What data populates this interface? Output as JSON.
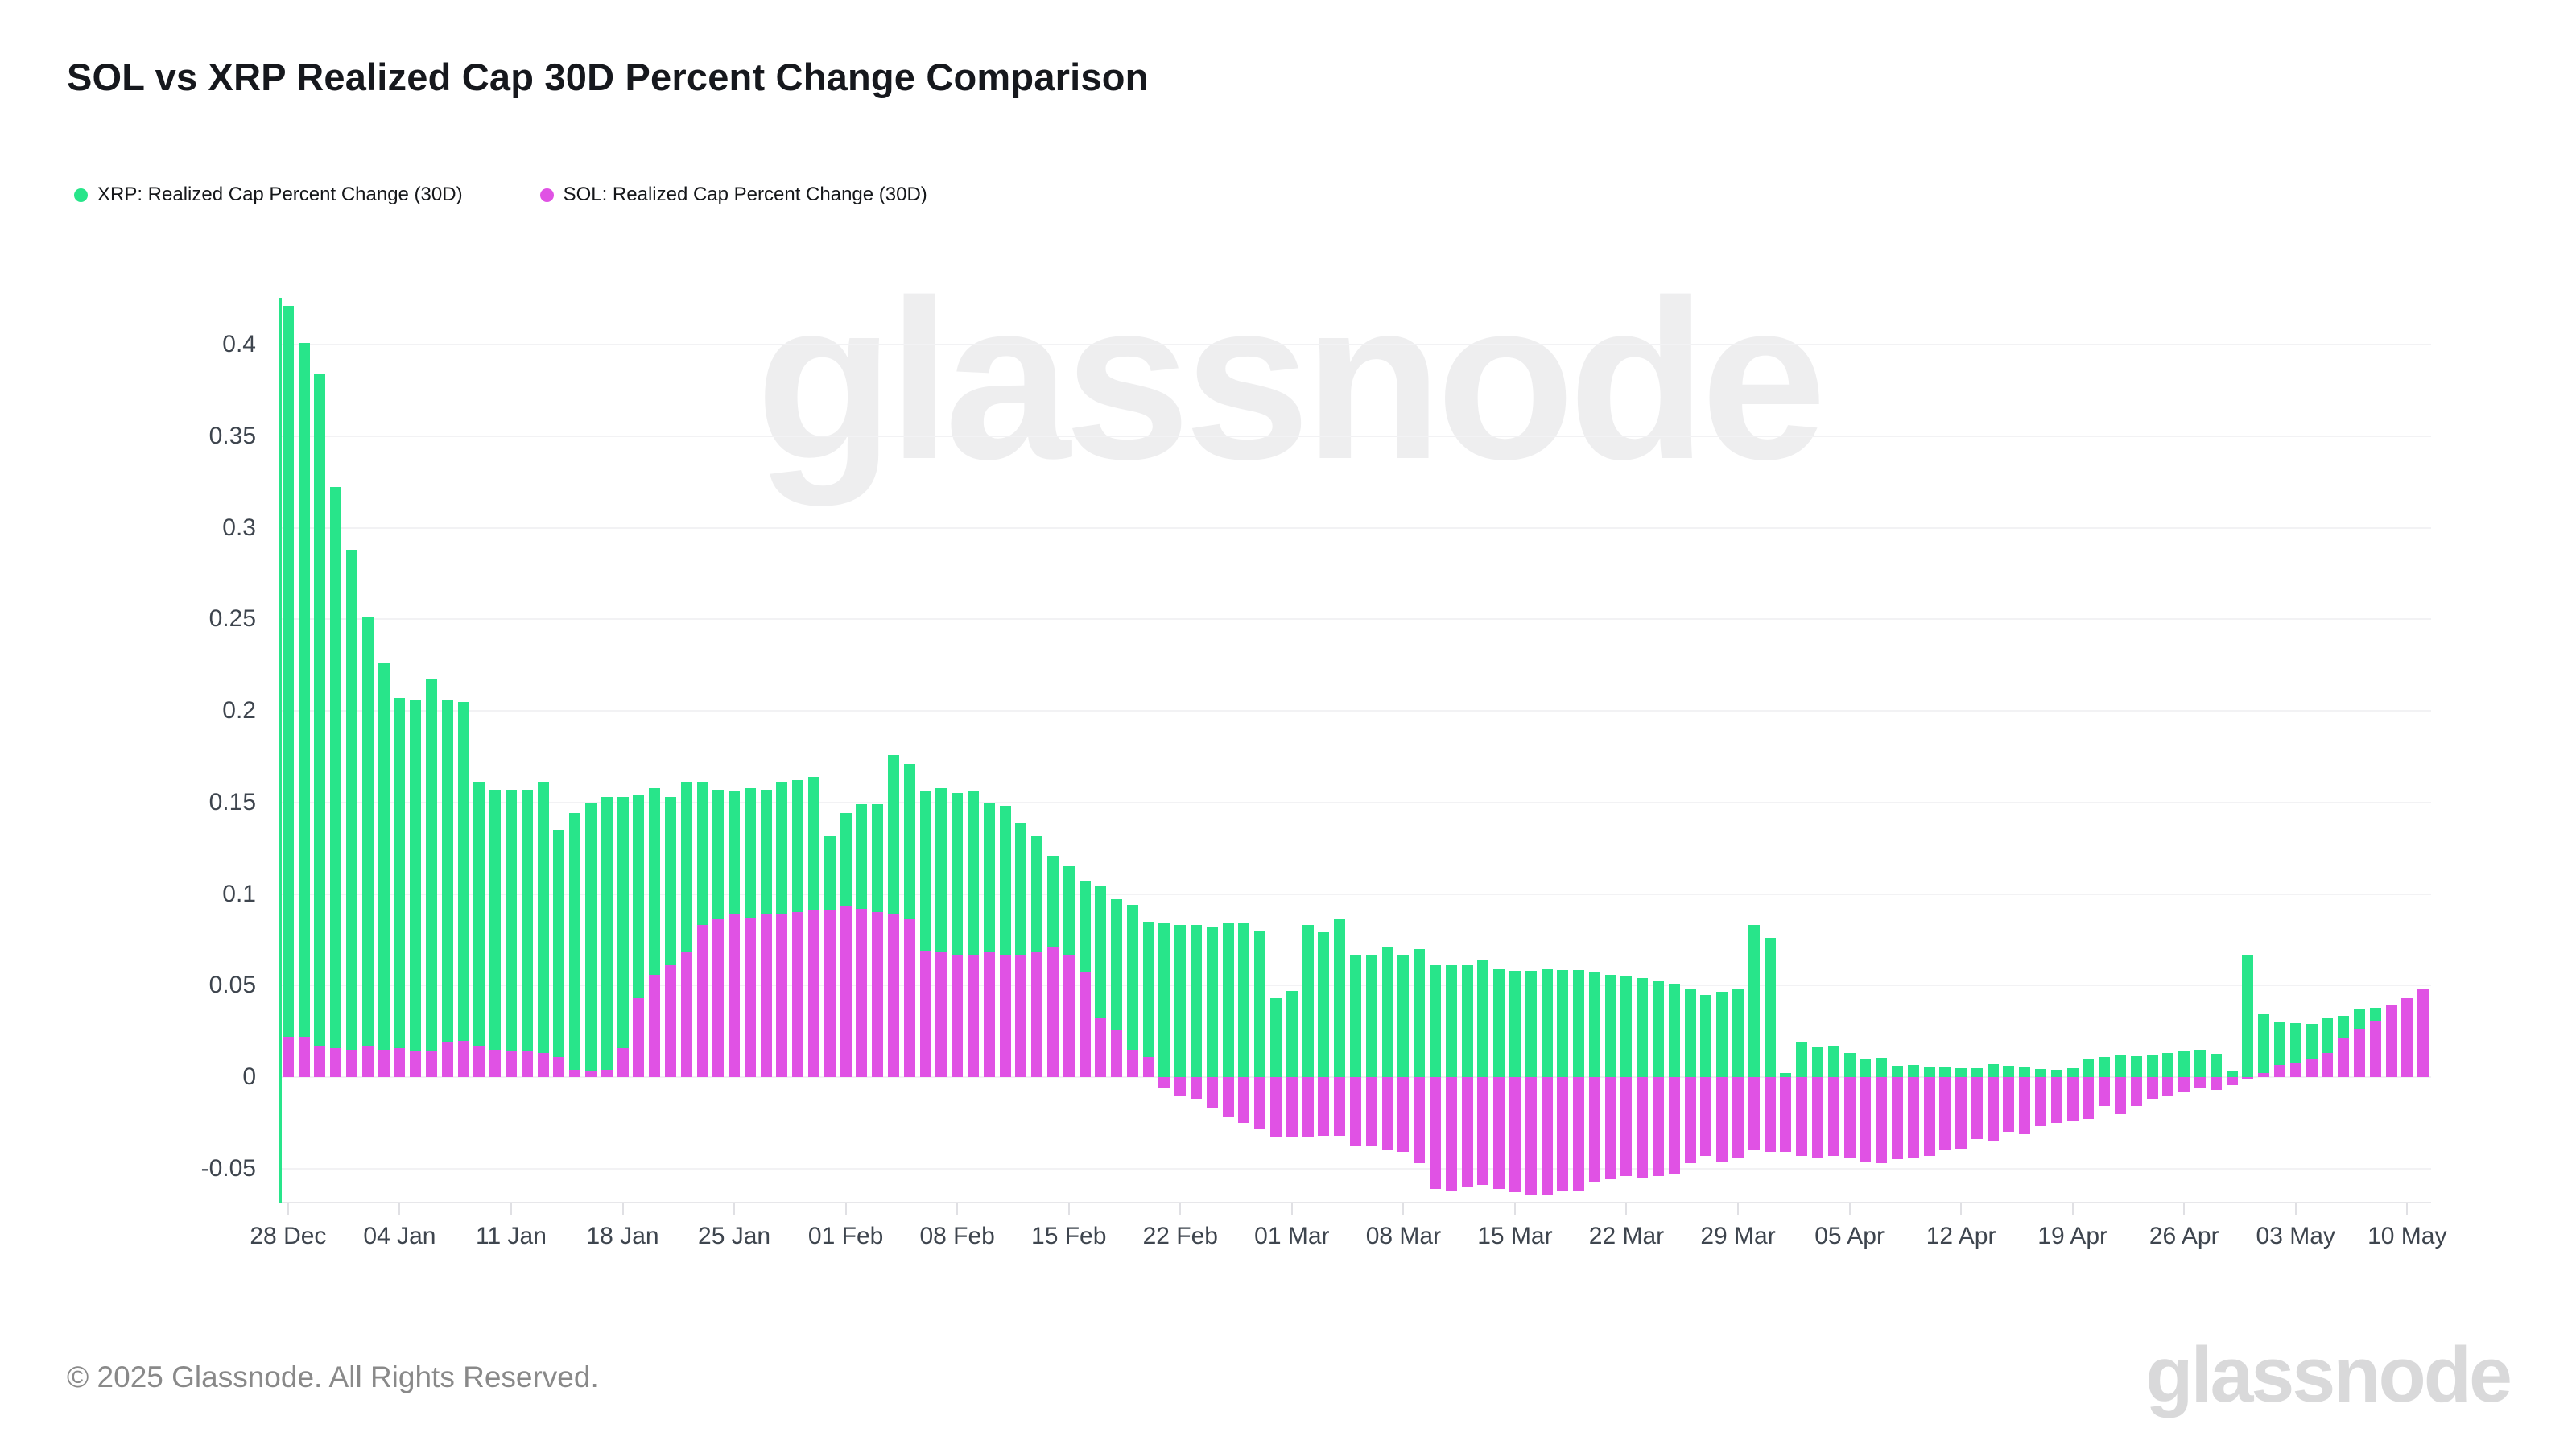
{
  "title": "SOL vs XRP Realized Cap 30D Percent Change Comparison",
  "legend": [
    {
      "label": "XRP: Realized Cap Percent Change (30D)",
      "color": "#28e58a"
    },
    {
      "label": "SOL: Realized Cap Percent Change (30D)",
      "color": "#e052e4"
    }
  ],
  "watermark_text": "glassnode",
  "footer": {
    "copyright": "© 2025 Glassnode. All Rights Reserved.",
    "logo_text": "glassnode"
  },
  "chart_data": {
    "type": "bar",
    "title": "SOL vs XRP Realized Cap 30D Percent Change Comparison",
    "xlabel": "",
    "ylabel": "",
    "ylim": [
      -0.069,
      0.4255
    ],
    "grid": true,
    "legend_position": "top-left",
    "y_ticks": {
      "values": [
        0.4,
        0.35,
        0.3,
        0.25,
        0.2,
        0.15,
        0.1,
        0.05,
        0,
        -0.05
      ],
      "labels": [
        "0.4",
        "0.35",
        "0.3",
        "0.25",
        "0.2",
        "0.15",
        "0.1",
        "0.05",
        "0",
        "-0.05"
      ]
    },
    "x_tick_every": 7,
    "x_tick_labels": [
      "28 Dec",
      "04 Jan",
      "11 Jan",
      "18 Jan",
      "25 Jan",
      "01 Feb",
      "08 Feb",
      "15 Feb",
      "22 Feb",
      "01 Mar",
      "08 Mar",
      "15 Mar",
      "22 Mar",
      "29 Mar",
      "05 Apr",
      "12 Apr",
      "19 Apr",
      "26 Apr",
      "03 May",
      "10 May"
    ],
    "series": [
      {
        "name": "XRP: Realized Cap Percent Change (30D)",
        "color": "#28e58a",
        "values": [
          0.421,
          0.401,
          0.384,
          0.322,
          0.288,
          0.251,
          0.226,
          0.207,
          0.206,
          0.217,
          0.206,
          0.205,
          0.161,
          0.157,
          0.157,
          0.157,
          0.161,
          0.135,
          0.144,
          0.15,
          0.153,
          0.153,
          0.154,
          0.158,
          0.153,
          0.161,
          0.161,
          0.157,
          0.156,
          0.158,
          0.157,
          0.161,
          0.162,
          0.164,
          0.132,
          0.144,
          0.149,
          0.149,
          0.176,
          0.171,
          0.156,
          0.158,
          0.155,
          0.156,
          0.15,
          0.148,
          0.139,
          0.132,
          0.121,
          0.115,
          0.107,
          0.104,
          0.097,
          0.094,
          0.085,
          0.084,
          0.083,
          0.083,
          0.082,
          0.084,
          0.084,
          0.08,
          0.043,
          0.047,
          0.083,
          0.079,
          0.086,
          0.067,
          0.067,
          0.071,
          0.067,
          0.07,
          0.061,
          0.061,
          0.061,
          0.064,
          0.059,
          0.058,
          0.058,
          0.059,
          0.0585,
          0.0585,
          0.057,
          0.056,
          0.055,
          0.054,
          0.0525,
          0.051,
          0.048,
          0.045,
          0.0465,
          0.048,
          0.083,
          0.076,
          0.002,
          0.019,
          0.0165,
          0.017,
          0.013,
          0.01,
          0.0105,
          0.0062,
          0.0065,
          0.0054,
          0.0051,
          0.0047,
          0.0047,
          0.007,
          0.0062,
          0.0054,
          0.0042,
          0.0039,
          0.005,
          0.0101,
          0.0112,
          0.0121,
          0.0116,
          0.0124,
          0.0132,
          0.0147,
          0.0151,
          0.0128,
          0.0035,
          0.067,
          0.0343,
          0.0297,
          0.0294,
          0.0289,
          0.0323,
          0.0335,
          0.0369,
          0.0377,
          0.0397,
          0.042,
          0.045
        ]
      },
      {
        "name": "SOL: Realized Cap Percent Change (30D)",
        "color": "#e052e4",
        "values": [
          0.022,
          0.022,
          0.017,
          0.016,
          0.015,
          0.017,
          0.015,
          0.016,
          0.014,
          0.014,
          0.019,
          0.02,
          0.017,
          0.015,
          0.014,
          0.014,
          0.013,
          0.011,
          0.004,
          0.003,
          0.004,
          0.016,
          0.043,
          0.056,
          0.061,
          0.068,
          0.083,
          0.086,
          0.089,
          0.087,
          0.089,
          0.089,
          0.09,
          0.091,
          0.091,
          0.093,
          0.092,
          0.09,
          0.089,
          0.086,
          0.069,
          0.068,
          0.067,
          0.067,
          0.068,
          0.067,
          0.067,
          0.068,
          0.071,
          0.067,
          0.057,
          0.032,
          0.026,
          0.015,
          0.011,
          -0.006,
          -0.01,
          -0.012,
          -0.017,
          -0.022,
          -0.025,
          -0.028,
          -0.033,
          -0.033,
          -0.033,
          -0.032,
          -0.032,
          -0.038,
          -0.038,
          -0.04,
          -0.041,
          -0.047,
          -0.061,
          -0.062,
          -0.06,
          -0.059,
          -0.061,
          -0.063,
          -0.064,
          -0.064,
          -0.062,
          -0.062,
          -0.057,
          -0.056,
          -0.054,
          -0.055,
          -0.054,
          -0.053,
          -0.047,
          -0.043,
          -0.046,
          -0.044,
          -0.04,
          -0.041,
          -0.041,
          -0.043,
          -0.044,
          -0.043,
          -0.044,
          -0.046,
          -0.047,
          -0.045,
          -0.044,
          -0.043,
          -0.04,
          -0.039,
          -0.034,
          -0.035,
          -0.03,
          -0.031,
          -0.027,
          -0.025,
          -0.024,
          -0.023,
          -0.016,
          -0.02,
          -0.016,
          -0.012,
          -0.01,
          -0.0085,
          -0.0062,
          -0.0072,
          -0.0045,
          -0.001,
          0.002,
          0.0066,
          0.0074,
          0.0102,
          0.0131,
          0.0212,
          0.0266,
          0.0308,
          0.0392,
          0.043,
          0.0485
        ]
      }
    ]
  }
}
